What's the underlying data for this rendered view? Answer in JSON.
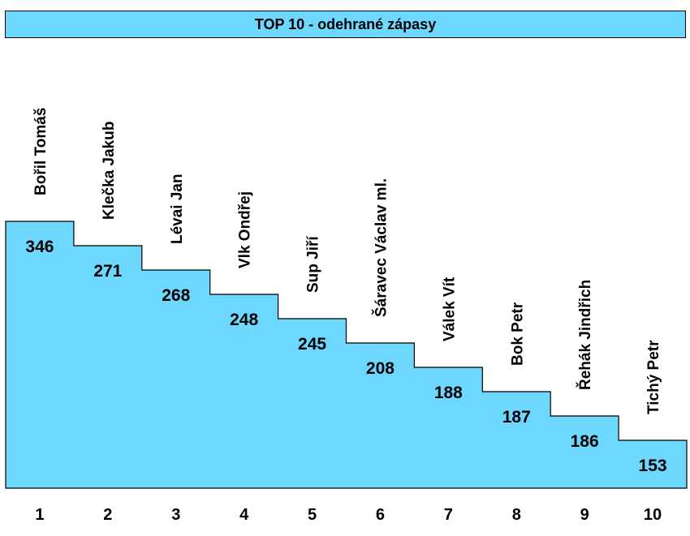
{
  "chart_data": {
    "type": "bar",
    "title": "TOP 10 - odehrané zápasy",
    "categories": [
      "1",
      "2",
      "3",
      "4",
      "5",
      "6",
      "7",
      "8",
      "9",
      "10"
    ],
    "names": [
      "Bořil Tomáš",
      "Klečka Jakub",
      "Lévai Jan",
      "Vlk Ondřej",
      "Sup Jiří",
      "Šáravec Václav ml.",
      "Válek Vít",
      "Bok Petr",
      "Řehák Jindřich",
      "Tichý Petr"
    ],
    "values": [
      346,
      271,
      268,
      248,
      245,
      208,
      188,
      187,
      186,
      153
    ],
    "fill_color": "#6dd7fd",
    "border_color": "#000000",
    "grid": false,
    "legend": "none"
  }
}
